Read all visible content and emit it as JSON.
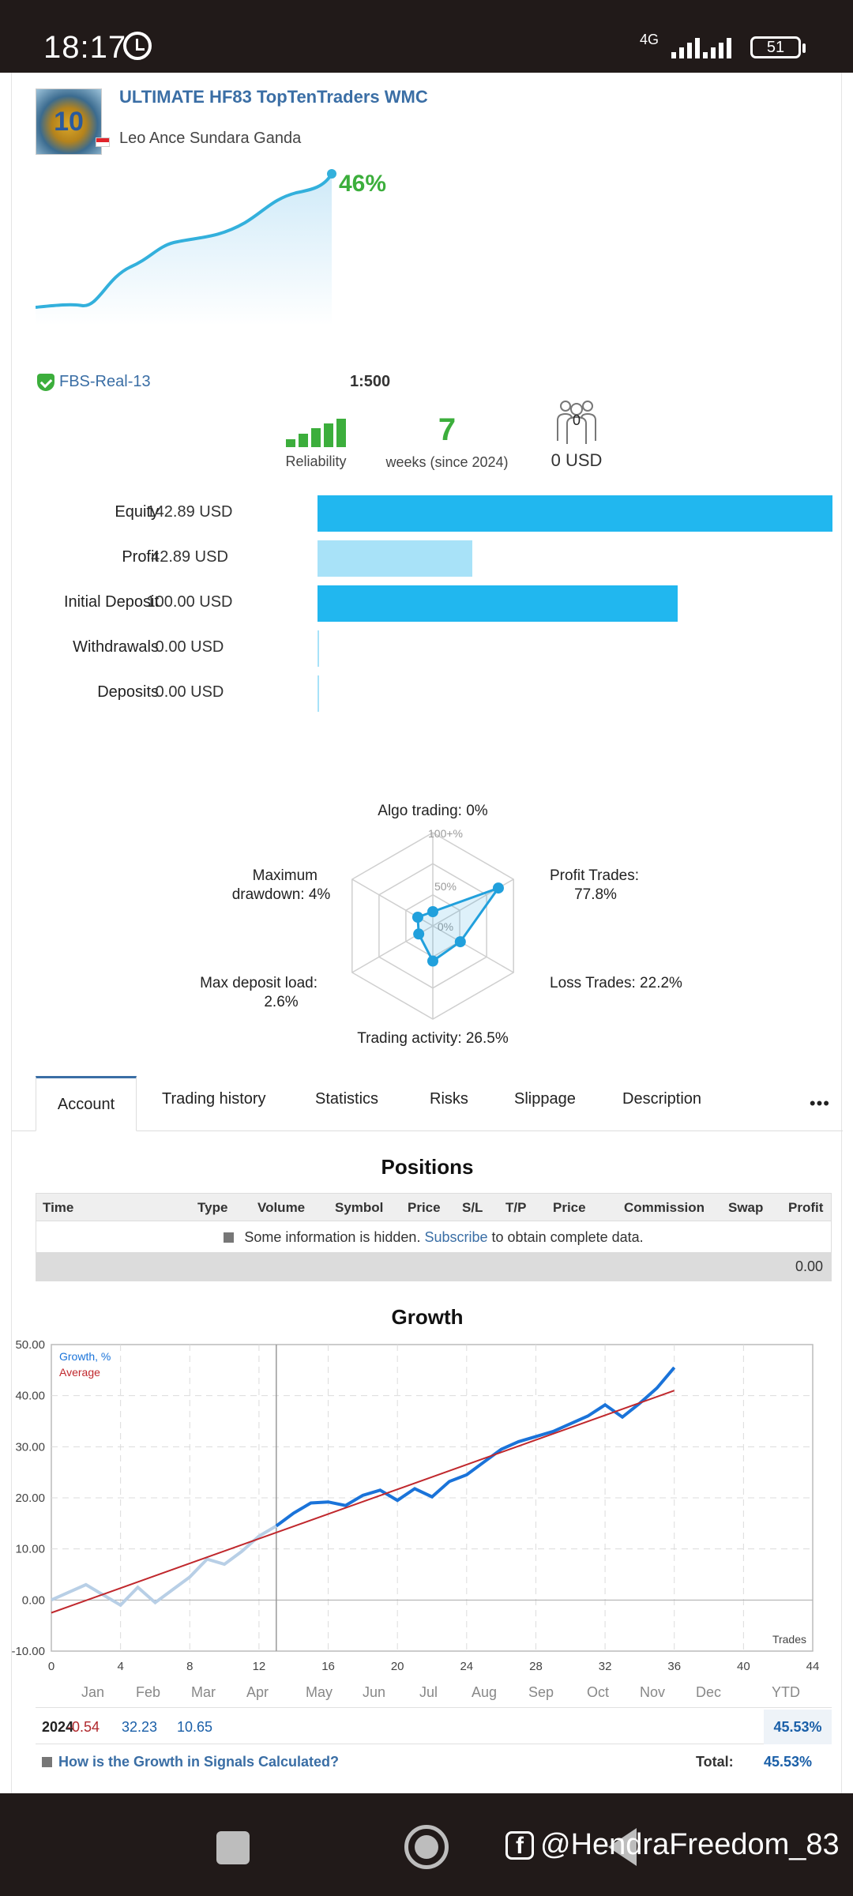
{
  "status_bar": {
    "time": "18:17",
    "network": "4G",
    "battery": "51"
  },
  "signal": {
    "title": "ULTIMATE HF83 TopTenTraders WMC",
    "author": "Leo Ance Sundara Ganda",
    "logo_text": "10",
    "growth": "46%",
    "broker": "FBS-Real-13",
    "leverage": "1:500",
    "reliability_label": "Reliability",
    "weeks": "7",
    "weeks_label": "weeks (since 2024)",
    "subscribers": "0",
    "subscribers_usd": "0 USD",
    "colors": {
      "accent": "#3a6ea5",
      "green": "#3cae3c",
      "bar_dark": "#21b7ef",
      "bar_light": "#a8e2f8"
    }
  },
  "metrics": [
    {
      "label": "Equity",
      "value": "142.89 USD",
      "fill": 1.0,
      "tone": "dark"
    },
    {
      "label": "Profit",
      "value": "42.89 USD",
      "fill": 0.3,
      "tone": "light"
    },
    {
      "label": "Initial Deposit",
      "value": "100.00 USD",
      "fill": 0.7,
      "tone": "dark"
    },
    {
      "label": "Withdrawals",
      "value": "0.00 USD",
      "fill": 0.0,
      "tone": "light"
    },
    {
      "label": "Deposits",
      "value": "0.00 USD",
      "fill": 0.0,
      "tone": "light"
    }
  ],
  "radar": {
    "scale": [
      "100+%",
      "50%",
      "0%"
    ],
    "axes": [
      {
        "label": "Algo trading: 0%",
        "value": 0
      },
      {
        "label": "Profit Trades: 77.8%",
        "value": 77.8
      },
      {
        "label": "Loss Trades: 22.2%",
        "value": 22.2
      },
      {
        "label": "Trading activity: 26.5%",
        "value": 26.5
      },
      {
        "label": "Max deposit load: 2.6%",
        "value": 2.6
      },
      {
        "label": "Maximum drawdown: 4%",
        "value": 4
      }
    ],
    "label_lines": [
      [
        "Algo trading: 0%"
      ],
      [
        "Profit Trades:",
        "77.8%"
      ],
      [
        "Loss Trades: 22.2%"
      ],
      [
        "Trading activity: 26.5%"
      ],
      [
        "Max deposit load:",
        "2.6%"
      ],
      [
        "Maximum",
        "drawdown: 4%"
      ]
    ]
  },
  "tabs": [
    "Account",
    "Trading history",
    "Statistics",
    "Risks",
    "Slippage",
    "Description"
  ],
  "more": "•••",
  "positions": {
    "title": "Positions",
    "columns": [
      "Time",
      "Type",
      "Volume",
      "Symbol",
      "Price",
      "S/L",
      "T/P",
      "Price",
      "Commission",
      "Swap",
      "Profit"
    ],
    "hidden_pre": "Some information is hidden.",
    "hidden_link": "Subscribe",
    "hidden_post": "to obtain complete data.",
    "total": "0.00"
  },
  "growth_chart": {
    "title": "Growth",
    "legend": [
      "Growth, %",
      "Average"
    ],
    "x_axis_label": "Trades"
  },
  "chart_data": {
    "type": "line",
    "title": "Growth",
    "xlabel": "Trades",
    "ylabel": "",
    "xlim": [
      0,
      44
    ],
    "ylim": [
      -10,
      50
    ],
    "x_ticks": [
      0,
      4,
      8,
      12,
      16,
      20,
      24,
      28,
      32,
      36,
      40,
      44
    ],
    "y_ticks": [
      "-10.00",
      "0.00",
      "10.00",
      "20.00",
      "30.00",
      "40.00",
      "50.00"
    ],
    "grid": true,
    "legend_position": "top-left",
    "divider_x": 13,
    "series": [
      {
        "name": "Growth, %",
        "color": "#1a73d9",
        "x": [
          0,
          1,
          2,
          3,
          4,
          5,
          6,
          7,
          8,
          9,
          10,
          11,
          12,
          13,
          14,
          15,
          16,
          17,
          18,
          19,
          20,
          21,
          22,
          23,
          24,
          25,
          26,
          27,
          28,
          29,
          30,
          31,
          32,
          33,
          34,
          35,
          36
        ],
        "y": [
          0,
          1.5,
          3,
          1,
          -1,
          2.5,
          -0.5,
          2,
          4.5,
          8,
          7,
          9.5,
          12.5,
          14.5,
          17,
          19,
          19.2,
          18.5,
          20.5,
          21.5,
          19.5,
          21.8,
          20.2,
          23.2,
          24.5,
          27,
          29.5,
          31,
          32,
          33,
          34.5,
          36,
          38.2,
          35.8,
          38.5,
          41.5,
          45.5
        ]
      },
      {
        "name": "Average",
        "color": "#c0282d",
        "x": [
          0,
          36
        ],
        "y": [
          -2.5,
          41
        ]
      }
    ],
    "monthly_table": {
      "months": [
        "Jan",
        "Feb",
        "Mar",
        "Apr",
        "May",
        "Jun",
        "Jul",
        "Aug",
        "Sep",
        "Oct",
        "Nov",
        "Dec",
        "YTD"
      ],
      "rows": [
        {
          "year": "2024",
          "values": [
            "-0.54",
            "32.23",
            "10.65"
          ],
          "ytd": "45.53%"
        }
      ],
      "total_label": "Total:",
      "total": "45.53%"
    }
  },
  "help_link": "How is the Growth in Signals Calculated?",
  "watermark": "@HendraFreedom_83",
  "watermark_logo": "f"
}
